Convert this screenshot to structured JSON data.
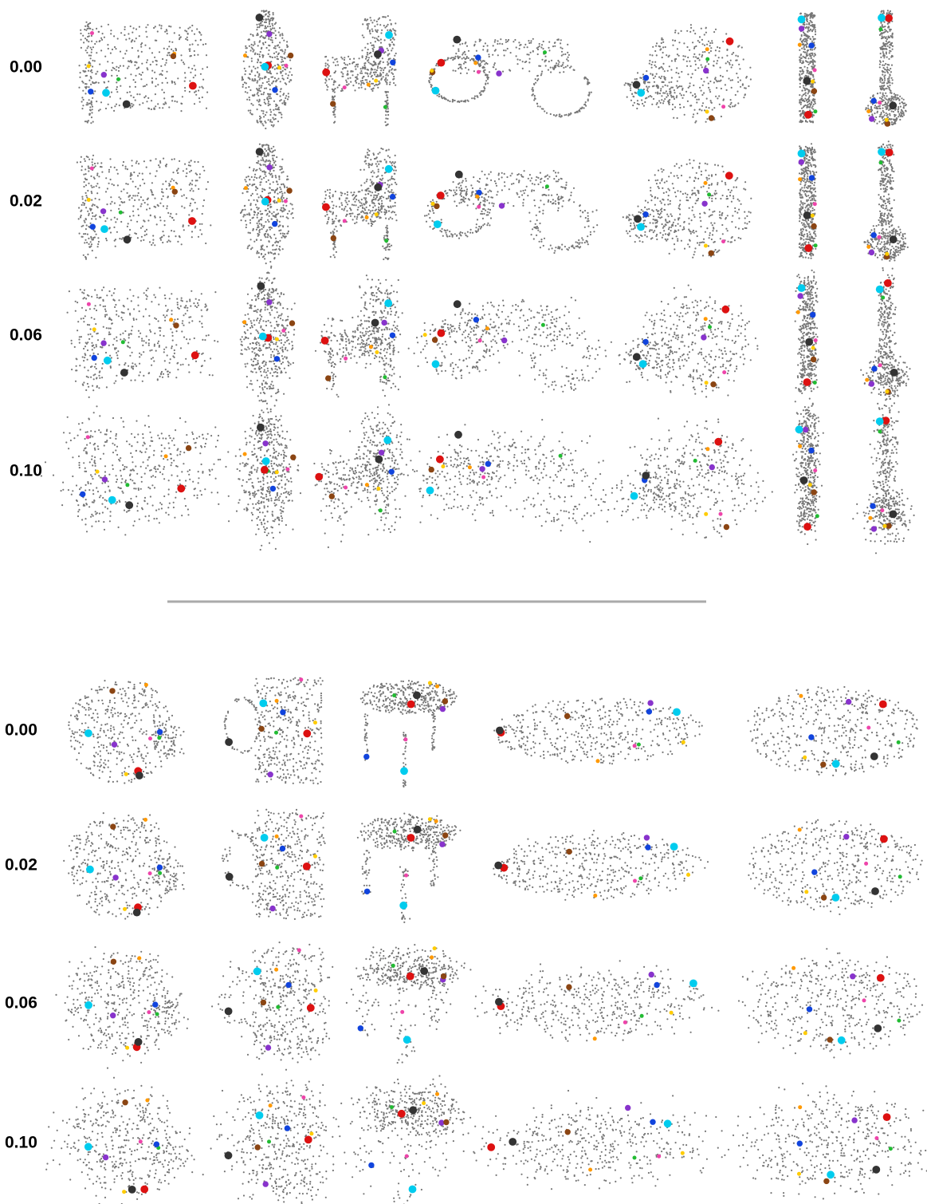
{
  "top": {
    "row_labels": [
      "0.00",
      "0.02",
      "0.06",
      "0.10"
    ]
  },
  "bottom": {
    "row_labels": [
      "0.00",
      "0.02",
      "0.06",
      "0.10"
    ]
  }
}
